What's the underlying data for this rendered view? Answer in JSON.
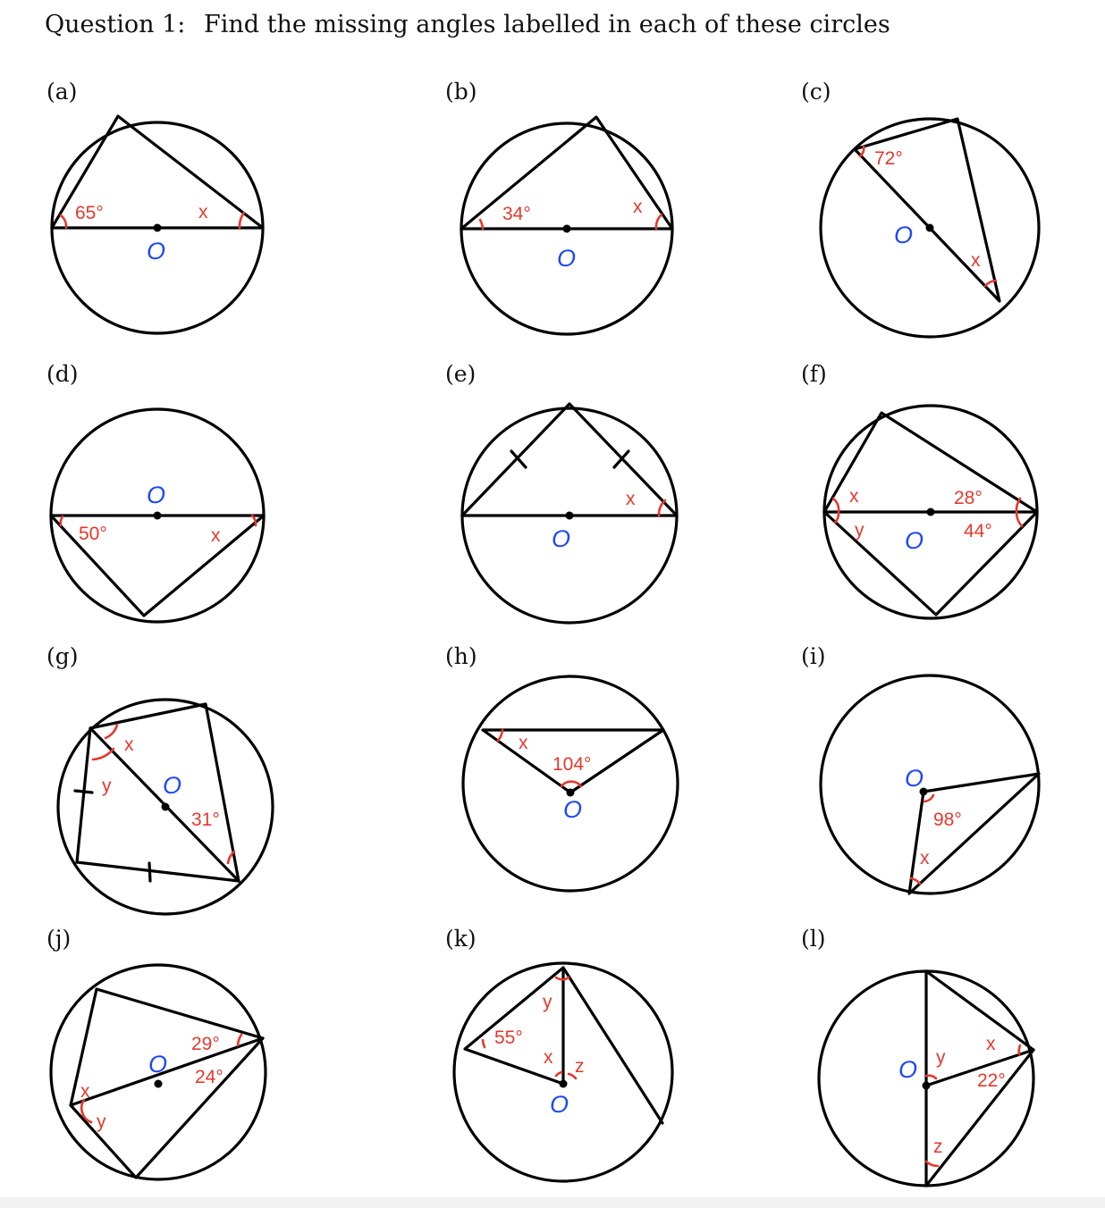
{
  "header": {
    "question": "Question 1:",
    "instruction": "Find the missing angles labelled in each of these circles"
  },
  "parts": {
    "a": {
      "label": "(a)",
      "angles": [
        "65°",
        "x"
      ],
      "center": "O"
    },
    "b": {
      "label": "(b)",
      "angles": [
        "34°",
        "x"
      ],
      "center": "O"
    },
    "c": {
      "label": "(c)",
      "angles": [
        "72°",
        "x"
      ],
      "center": "O"
    },
    "d": {
      "label": "(d)",
      "angles": [
        "50°",
        "x"
      ],
      "center": "O"
    },
    "e": {
      "label": "(e)",
      "angles": [
        "x"
      ],
      "center": "O"
    },
    "f": {
      "label": "(f)",
      "angles": [
        "x",
        "y",
        "28°",
        "44°"
      ],
      "center": "O"
    },
    "g": {
      "label": "(g)",
      "angles": [
        "x",
        "y",
        "31°"
      ],
      "center": "O"
    },
    "h": {
      "label": "(h)",
      "angles": [
        "x",
        "104°"
      ],
      "center": "O"
    },
    "i": {
      "label": "(i)",
      "angles": [
        "98°",
        "x"
      ],
      "center": "O"
    },
    "j": {
      "label": "(j)",
      "angles": [
        "29°",
        "24°",
        "x",
        "y"
      ],
      "center": "O"
    },
    "k": {
      "label": "(k)",
      "angles": [
        "55°",
        "y",
        "x",
        "z"
      ],
      "center": "O"
    },
    "l": {
      "label": "(l)",
      "angles": [
        "y",
        "x",
        "22°",
        "z"
      ],
      "center": "O"
    }
  },
  "colors": {
    "angle_mark": "#e6382d",
    "center_label": "#1f49f5",
    "line": "#000000"
  }
}
